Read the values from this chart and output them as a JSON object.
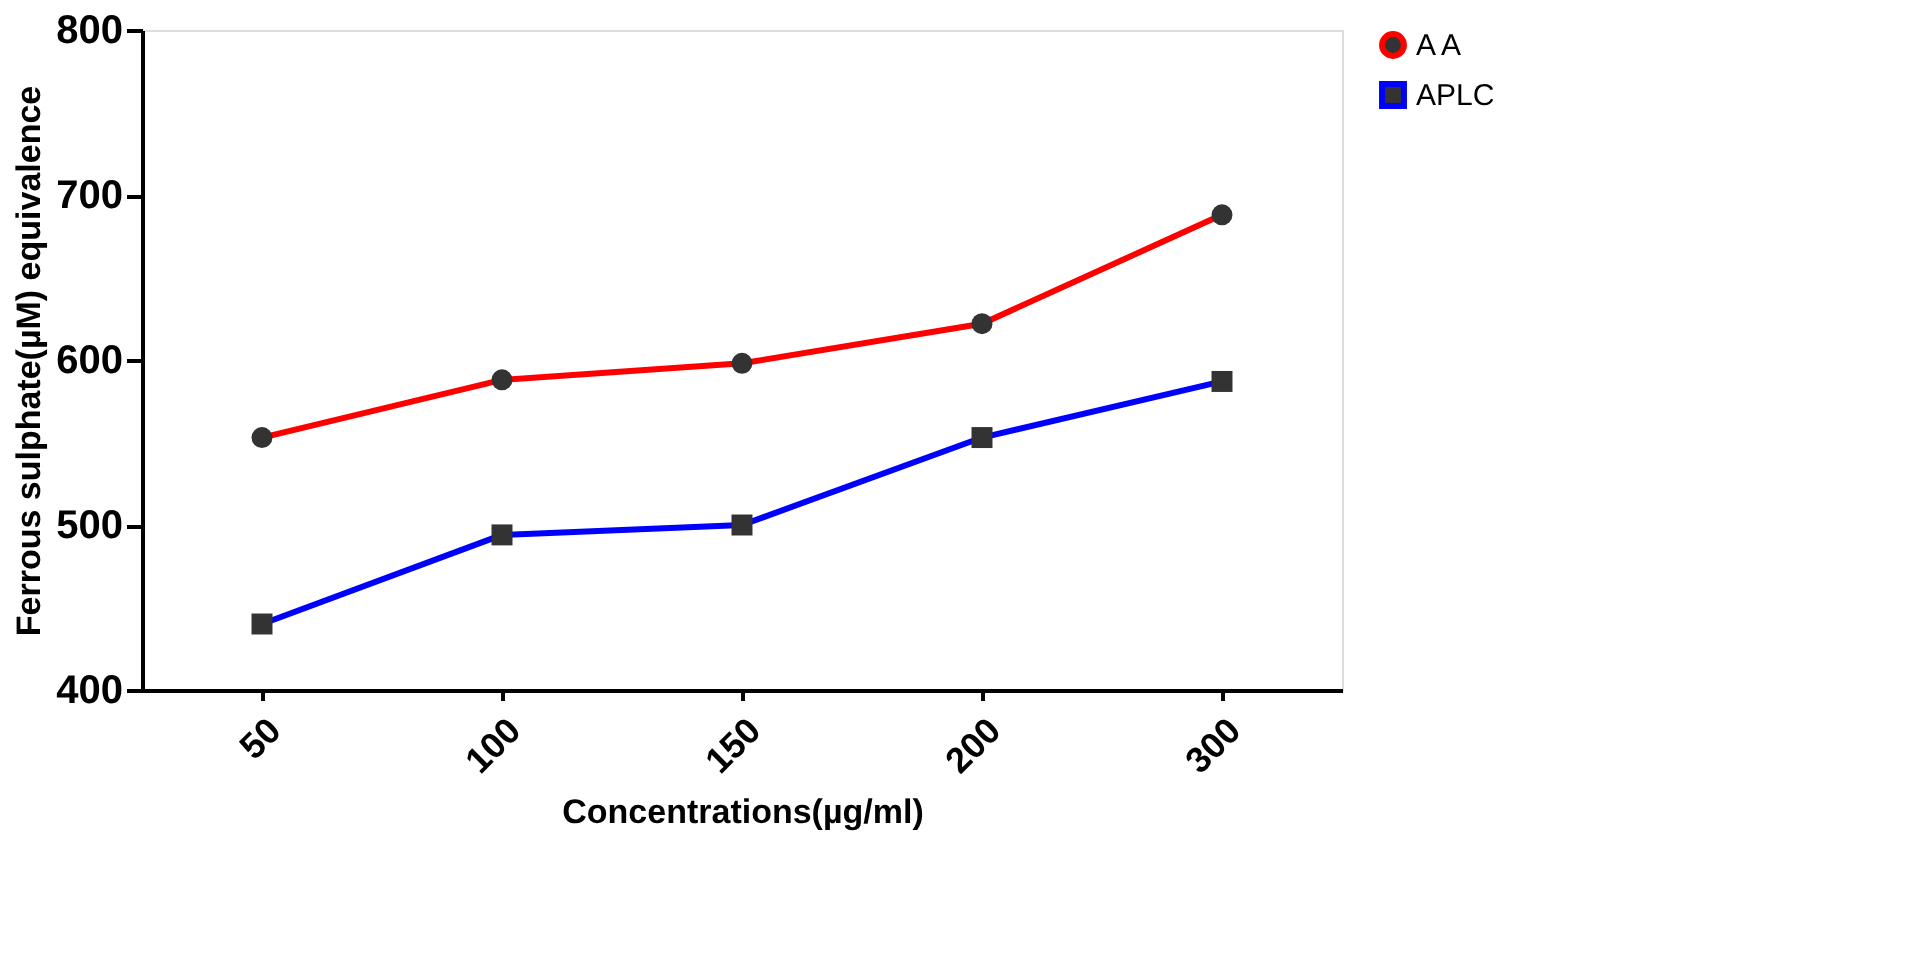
{
  "chart_data": {
    "type": "line",
    "xlabel": "Concentrations(µg/ml)",
    "ylabel": "Ferrous sulphate(µM) equivalence",
    "categories": [
      "50",
      "100",
      "150",
      "200",
      "300"
    ],
    "series": [
      {
        "name": "A A",
        "color": "#ff0000",
        "marker": "circle",
        "values": [
          553,
          588,
          598,
          622,
          688
        ]
      },
      {
        "name": "APLC",
        "color": "#0000ff",
        "marker": "square",
        "values": [
          440,
          494,
          500,
          553,
          587
        ]
      }
    ],
    "ylim": [
      400,
      800
    ],
    "yticks": [
      400,
      500,
      600,
      700,
      800
    ],
    "grid": false,
    "legend": "top right",
    "line_style": "solid"
  }
}
